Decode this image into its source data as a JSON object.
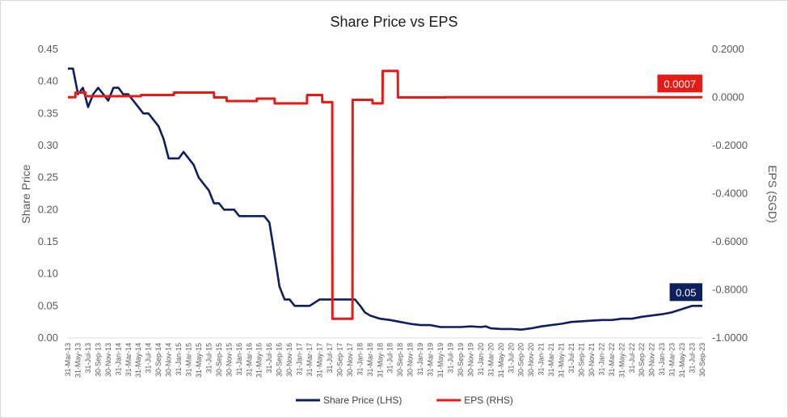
{
  "chart_data": {
    "type": "line",
    "title": "Share Price vs EPS",
    "ylabel": "Share Price",
    "y2label": "EPS (SGD)",
    "ylim": [
      0,
      0.45
    ],
    "y2lim": [
      -1.0,
      0.2
    ],
    "yticks": [
      "0.00",
      "0.05",
      "0.10",
      "0.15",
      "0.20",
      "0.25",
      "0.30",
      "0.35",
      "0.40",
      "0.45"
    ],
    "y2ticks": [
      "-1.0000",
      "-0.8000",
      "-0.6000",
      "-0.4000",
      "-0.2000",
      "0.0000",
      "0.2000"
    ],
    "grid": false,
    "legend": "bottom",
    "x_tick_labels": [
      "31-Mar-13",
      "31-May-13",
      "31-Jul-13",
      "30-Sep-13",
      "30-Nov-13",
      "31-Jan-14",
      "31-Mar-14",
      "31-May-14",
      "31-Jul-14",
      "30-Sep-14",
      "30-Nov-14",
      "31-Jan-15",
      "31-Mar-15",
      "31-May-15",
      "31-Jul-15",
      "30-Sep-15",
      "30-Nov-15",
      "31-Jan-16",
      "31-Mar-16",
      "31-May-16",
      "31-Jul-16",
      "30-Sep-16",
      "30-Nov-16",
      "31-Jan-17",
      "31-Mar-17",
      "31-May-17",
      "31-Jul-17",
      "30-Sep-17",
      "30-Nov-17",
      "31-Jan-18",
      "31-Mar-18",
      "31-May-18",
      "31-Jul-18",
      "30-Sep-18",
      "30-Nov-18",
      "31-Jan-19",
      "31-Mar-19",
      "31-May-19",
      "31-Jul-19",
      "30-Sep-19",
      "30-Nov-19",
      "31-Jan-20",
      "31-Mar-20",
      "31-May-20",
      "31-Jul-20",
      "30-Sep-20",
      "30-Nov-20",
      "31-Jan-21",
      "31-Mar-21",
      "31-May-21",
      "31-Jul-21",
      "30-Sep-21",
      "30-Nov-21",
      "31-Jan-22",
      "31-Mar-22",
      "31-May-22",
      "31-Jul-22",
      "30-Sep-22",
      "30-Nov-22",
      "31-Jan-23",
      "31-Mar-23",
      "31-May-23",
      "31-Jul-23",
      "30-Sep-23"
    ],
    "series": [
      {
        "name": "Share Price (LHS)",
        "axis": "left",
        "color": "#0d1f5c",
        "x": [
          "2013-03-31",
          "2013-05-01",
          "2013-05-31",
          "2013-06-30",
          "2013-07-31",
          "2013-08-31",
          "2013-09-30",
          "2013-10-31",
          "2013-11-30",
          "2013-12-31",
          "2014-01-31",
          "2014-02-28",
          "2014-03-31",
          "2014-04-30",
          "2014-05-31",
          "2014-06-30",
          "2014-07-31",
          "2014-08-31",
          "2014-09-30",
          "2014-10-31",
          "2014-11-30",
          "2014-12-31",
          "2015-01-31",
          "2015-02-28",
          "2015-03-31",
          "2015-04-30",
          "2015-05-31",
          "2015-06-30",
          "2015-07-31",
          "2015-08-31",
          "2015-09-30",
          "2015-10-31",
          "2015-11-30",
          "2015-12-31",
          "2016-01-31",
          "2016-02-29",
          "2016-03-31",
          "2016-04-30",
          "2016-05-31",
          "2016-06-30",
          "2016-07-31",
          "2016-08-31",
          "2016-09-30",
          "2016-10-31",
          "2016-11-30",
          "2016-12-31",
          "2017-01-31",
          "2017-03-31",
          "2017-05-31",
          "2017-07-31",
          "2017-09-30",
          "2017-11-30",
          "2017-12-31",
          "2018-01-31",
          "2018-02-28",
          "2018-03-31",
          "2018-05-31",
          "2018-07-31",
          "2018-09-30",
          "2018-11-30",
          "2019-01-31",
          "2019-03-31",
          "2019-05-31",
          "2019-07-31",
          "2019-09-30",
          "2019-11-30",
          "2020-01-31",
          "2020-02-29",
          "2020-03-31",
          "2020-05-31",
          "2020-07-31",
          "2020-09-30",
          "2020-11-30",
          "2021-01-31",
          "2021-03-31",
          "2021-05-31",
          "2021-07-31",
          "2021-09-30",
          "2021-11-30",
          "2022-01-31",
          "2022-03-31",
          "2022-05-31",
          "2022-07-31",
          "2022-09-30",
          "2022-11-30",
          "2023-01-31",
          "2023-03-31",
          "2023-05-31",
          "2023-07-31",
          "2023-09-30"
        ],
        "values": [
          0.42,
          0.42,
          0.38,
          0.39,
          0.36,
          0.38,
          0.39,
          0.38,
          0.37,
          0.39,
          0.39,
          0.38,
          0.38,
          0.37,
          0.36,
          0.35,
          0.35,
          0.34,
          0.33,
          0.31,
          0.28,
          0.28,
          0.28,
          0.29,
          0.28,
          0.27,
          0.25,
          0.24,
          0.23,
          0.21,
          0.21,
          0.2,
          0.2,
          0.2,
          0.19,
          0.19,
          0.19,
          0.19,
          0.19,
          0.19,
          0.18,
          0.13,
          0.08,
          0.06,
          0.06,
          0.05,
          0.05,
          0.05,
          0.06,
          0.06,
          0.06,
          0.06,
          0.06,
          0.05,
          0.04,
          0.035,
          0.03,
          0.028,
          0.025,
          0.022,
          0.02,
          0.02,
          0.017,
          0.017,
          0.017,
          0.018,
          0.017,
          0.018,
          0.015,
          0.014,
          0.014,
          0.013,
          0.015,
          0.018,
          0.02,
          0.022,
          0.025,
          0.026,
          0.027,
          0.028,
          0.028,
          0.03,
          0.03,
          0.033,
          0.035,
          0.037,
          0.04,
          0.045,
          0.05,
          0.05
        ]
      },
      {
        "name": "EPS (RHS)",
        "axis": "right",
        "color": "#e41b17",
        "x": [
          "2013-03-31",
          "2013-05-15",
          "2013-05-16",
          "2013-07-15",
          "2013-07-16",
          "2014-06-15",
          "2014-06-16",
          "2014-12-31",
          "2015-01-01",
          "2015-08-31",
          "2015-09-01",
          "2015-11-15",
          "2015-11-16",
          "2016-05-15",
          "2016-05-16",
          "2016-08-31",
          "2016-09-01",
          "2017-03-15",
          "2017-03-16",
          "2017-06-15",
          "2017-06-16",
          "2017-08-15",
          "2017-08-16",
          "2017-12-15",
          "2017-12-16",
          "2018-04-15",
          "2018-04-16",
          "2018-06-15",
          "2018-06-16",
          "2018-09-15",
          "2018-09-16",
          "2019-06-30",
          "2019-07-01",
          "2023-09-30"
        ],
        "values": [
          0.0007,
          0.0007,
          0.02,
          0.02,
          0.005,
          0.005,
          0.01,
          0.01,
          0.02,
          0.02,
          0.0,
          0.0,
          -0.015,
          -0.015,
          -0.005,
          -0.005,
          -0.025,
          -0.025,
          0.01,
          0.01,
          -0.02,
          -0.02,
          -0.92,
          -0.92,
          -0.01,
          -0.01,
          -0.025,
          -0.025,
          0.11,
          0.11,
          0.0,
          0.0,
          0.0007,
          0.0007
        ]
      }
    ],
    "annotations": [
      {
        "series": "EPS (RHS)",
        "text": "0.0007",
        "color": "#e41b17"
      },
      {
        "series": "Share Price (LHS)",
        "text": "0.05",
        "color": "#0d1f5c"
      }
    ]
  }
}
